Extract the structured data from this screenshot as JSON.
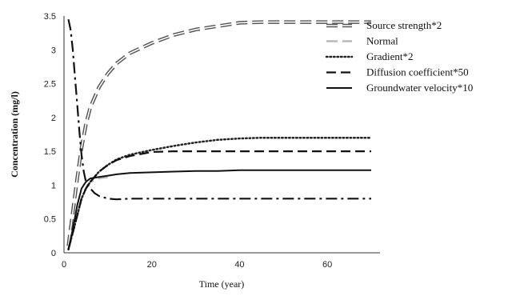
{
  "chart_data": {
    "type": "line",
    "title": "",
    "xlabel": "Time (year)",
    "ylabel": "Concentration (mg/l)",
    "xlim": [
      0,
      72
    ],
    "ylim": [
      0,
      3.5
    ],
    "x_ticks": [
      "0",
      "20",
      "40",
      "60"
    ],
    "y_ticks": [
      "0",
      "0.5",
      "1",
      "1.5",
      "2",
      "2.5",
      "3",
      "3.5"
    ],
    "legend_position": "top-right",
    "grid": false,
    "series": [
      {
        "name": "Source strength*2",
        "style": "dash-white-outline",
        "color": "#555555",
        "x": [
          1,
          2,
          3,
          4,
          5,
          6,
          8,
          10,
          12,
          15,
          20,
          25,
          30,
          35,
          40,
          45,
          50,
          55,
          60,
          65,
          70
        ],
        "y": [
          0.1,
          0.6,
          1.1,
          1.55,
          1.9,
          2.15,
          2.45,
          2.65,
          2.8,
          2.95,
          3.1,
          3.22,
          3.3,
          3.35,
          3.4,
          3.41,
          3.41,
          3.41,
          3.41,
          3.41,
          3.41
        ]
      },
      {
        "name": "Normal",
        "style": "long-dash-light",
        "color": "#b8b8b8",
        "x": [
          1,
          2,
          3,
          4,
          5,
          6,
          8,
          10
        ],
        "y": [
          0.05,
          0.3,
          0.55,
          0.8,
          0.95,
          1.05,
          1.1,
          1.12
        ]
      },
      {
        "name": "Gradient*2",
        "style": "dotted",
        "color": "#222222",
        "x": [
          1,
          2,
          3,
          4,
          5,
          6,
          8,
          10,
          12,
          15,
          20,
          25,
          30,
          35,
          40,
          45,
          50,
          55,
          60,
          65,
          70
        ],
        "y": [
          0.05,
          0.3,
          0.55,
          0.8,
          0.95,
          1.05,
          1.2,
          1.3,
          1.38,
          1.45,
          1.52,
          1.58,
          1.63,
          1.67,
          1.69,
          1.7,
          1.7,
          1.7,
          1.7,
          1.7,
          1.7
        ]
      },
      {
        "name": "Diffusion coefficient*50",
        "style": "dashed",
        "color": "#111111",
        "x": [
          1,
          2,
          3,
          4,
          5,
          6,
          8,
          10,
          12,
          15,
          20,
          25,
          30,
          35,
          40,
          45,
          50,
          55,
          60,
          65,
          70
        ],
        "y": [
          0.05,
          0.3,
          0.55,
          0.8,
          0.95,
          1.05,
          1.2,
          1.3,
          1.37,
          1.43,
          1.49,
          1.5,
          1.5,
          1.5,
          1.5,
          1.5,
          1.5,
          1.5,
          1.5,
          1.5,
          1.5
        ]
      },
      {
        "name": "Groundwater velocity*10",
        "style": "solid",
        "color": "#111111",
        "x": [
          1,
          2,
          3,
          4,
          5,
          6,
          8,
          10,
          12,
          15,
          20,
          25,
          30,
          35,
          40,
          45,
          50,
          55,
          60,
          65,
          70
        ],
        "y": [
          0.05,
          0.35,
          0.7,
          0.95,
          1.05,
          1.1,
          1.12,
          1.14,
          1.16,
          1.18,
          1.19,
          1.2,
          1.21,
          1.21,
          1.22,
          1.22,
          1.22,
          1.22,
          1.22,
          1.22,
          1.22
        ]
      },
      {
        "name": "",
        "style": "dash-dot",
        "color": "#111111",
        "x": [
          1,
          1.5,
          2,
          2.5,
          3,
          3.5,
          4,
          4.5,
          5,
          6,
          7,
          8,
          10,
          12,
          15,
          20,
          30,
          40,
          50,
          60,
          70
        ],
        "y": [
          3.45,
          3.3,
          3.0,
          2.6,
          2.2,
          1.8,
          1.45,
          1.2,
          1.05,
          0.95,
          0.88,
          0.84,
          0.8,
          0.79,
          0.8,
          0.8,
          0.8,
          0.8,
          0.8,
          0.8,
          0.8
        ]
      }
    ]
  }
}
